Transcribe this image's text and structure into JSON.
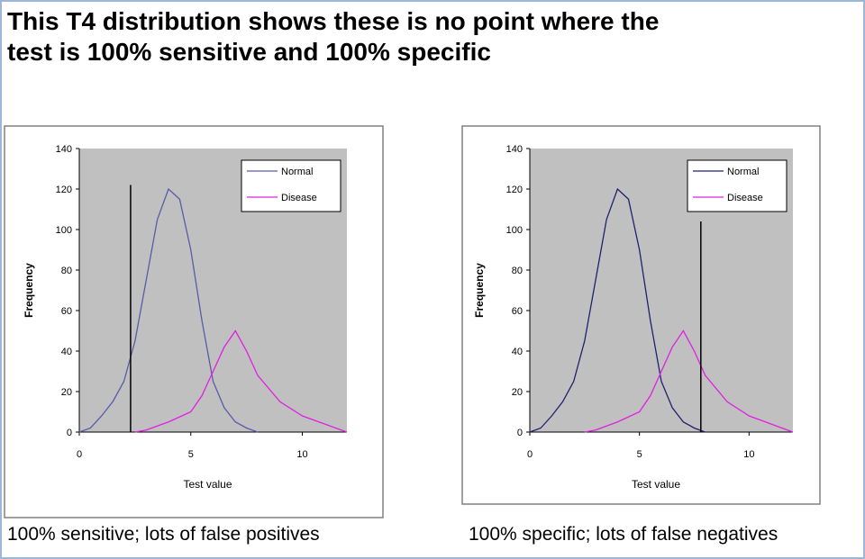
{
  "title": "This T4 distribution shows these is no point where the test is 100% sensitive and 100% specific",
  "chart_data": [
    {
      "type": "line",
      "caption": "100% sensitive; lots of false positives",
      "xlabel": "Test value",
      "ylabel": "Frequency",
      "xlim": [
        0,
        12
      ],
      "ylim": [
        0,
        140
      ],
      "xticks": [
        0,
        5,
        10
      ],
      "yticks": [
        0,
        20,
        40,
        60,
        80,
        100,
        120,
        140
      ],
      "threshold": {
        "x": 2.3,
        "top": 122
      },
      "series": [
        {
          "name": "Normal",
          "color": "#5a5aa8",
          "x": [
            0,
            0.5,
            1,
            1.5,
            2,
            2.5,
            3,
            3.5,
            4,
            4.5,
            5,
            5.5,
            6,
            6.5,
            7,
            7.5,
            8
          ],
          "values": [
            0,
            2,
            8,
            15,
            25,
            45,
            75,
            105,
            120,
            115,
            90,
            55,
            25,
            12,
            5,
            2,
            0
          ]
        },
        {
          "name": "Disease",
          "color": "#e020e0",
          "x": [
            2.5,
            3,
            4,
            5,
            5.5,
            6,
            6.5,
            7,
            7.5,
            8,
            9,
            10,
            11,
            12
          ],
          "values": [
            0,
            1,
            5,
            10,
            18,
            30,
            42,
            50,
            40,
            28,
            15,
            8,
            4,
            0
          ]
        }
      ]
    },
    {
      "type": "line",
      "caption": "100% specific; lots of false negatives",
      "xlabel": "Test value",
      "ylabel": "Frequency",
      "xlim": [
        0,
        12
      ],
      "ylim": [
        0,
        140
      ],
      "xticks": [
        0,
        5,
        10
      ],
      "yticks": [
        0,
        20,
        40,
        60,
        80,
        100,
        120,
        140
      ],
      "threshold": {
        "x": 7.8,
        "top": 104
      },
      "series": [
        {
          "name": "Normal",
          "color": "#202070",
          "x": [
            0,
            0.5,
            1,
            1.5,
            2,
            2.5,
            3,
            3.5,
            4,
            4.5,
            5,
            5.5,
            6,
            6.5,
            7,
            7.5,
            8
          ],
          "values": [
            0,
            2,
            8,
            15,
            25,
            45,
            75,
            105,
            120,
            115,
            90,
            55,
            25,
            12,
            5,
            2,
            0
          ]
        },
        {
          "name": "Disease",
          "color": "#e020e0",
          "x": [
            2.5,
            3,
            4,
            5,
            5.5,
            6,
            6.5,
            7,
            7.5,
            8,
            9,
            10,
            11,
            12
          ],
          "values": [
            0,
            1,
            5,
            10,
            18,
            30,
            42,
            50,
            40,
            28,
            15,
            8,
            4,
            0
          ]
        }
      ]
    }
  ]
}
